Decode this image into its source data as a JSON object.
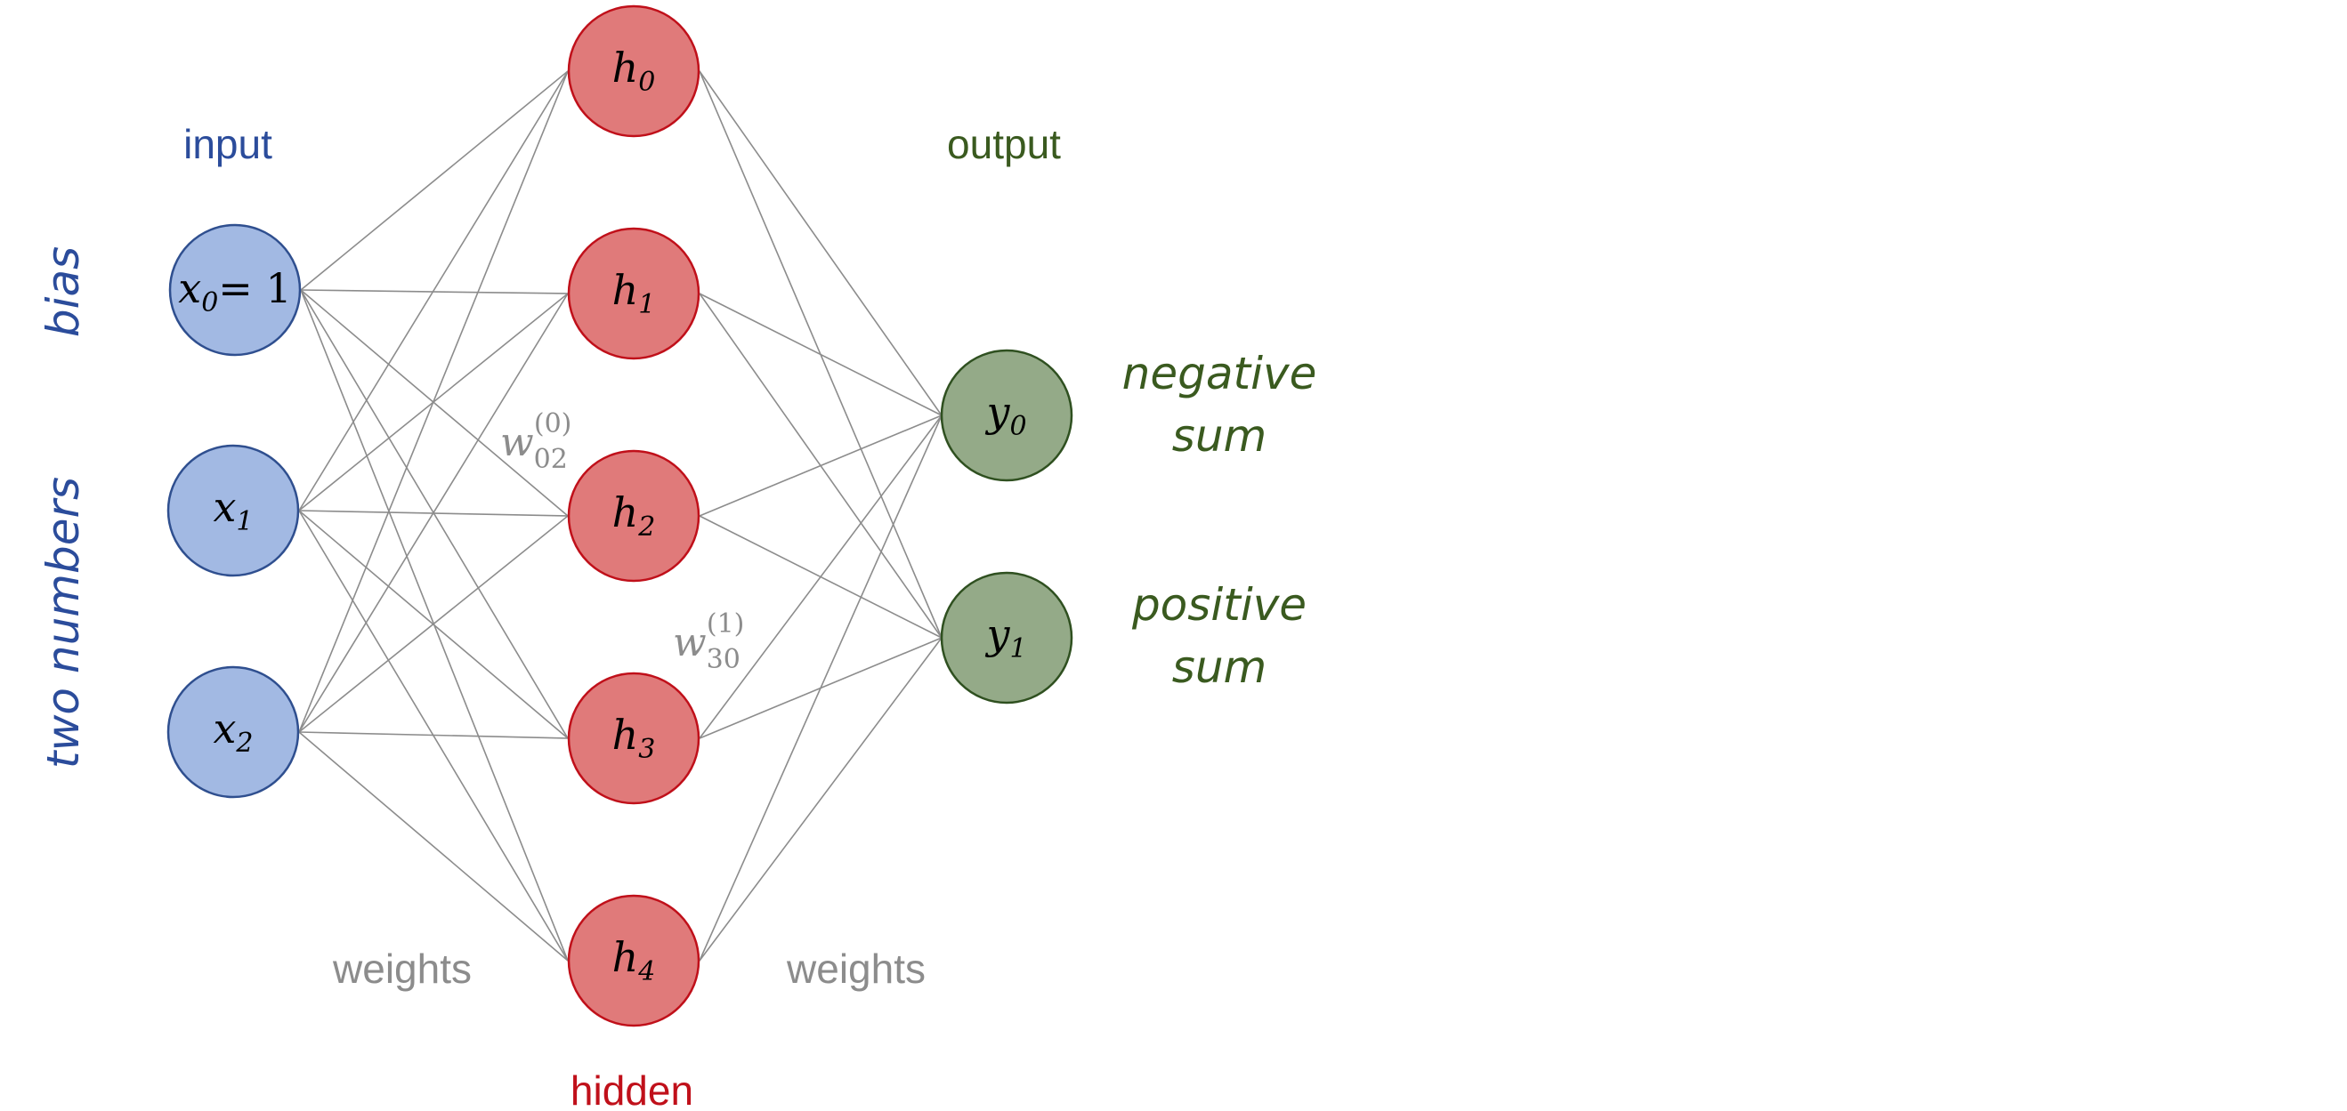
{
  "colors": {
    "input_fill": "#a2b9e3",
    "input_stroke": "#2f4f8f",
    "hidden_fill": "#e07a7a",
    "hidden_stroke": "#c0101a",
    "output_fill": "#94aa88",
    "output_stroke": "#2f5020",
    "edge": "#8c8c8c",
    "blue_text": "#2b4c9b",
    "green_text": "#3a5a1f",
    "red_text": "#c0101a",
    "gray_text": "#8c8c8c"
  },
  "labels": {
    "input": "input",
    "output": "output",
    "hidden": "hidden",
    "weights_left": "weights",
    "weights_right": "weights",
    "bias": "bias",
    "two_numbers": "two numbers",
    "negative": "negative",
    "negative_sum": "sum",
    "positive": "positive",
    "positive_sum": "sum"
  },
  "nodes": {
    "inputs": [
      {
        "var": "x",
        "sub": "0",
        "suffix": "= 1"
      },
      {
        "var": "x",
        "sub": "1",
        "suffix": ""
      },
      {
        "var": "x",
        "sub": "2",
        "suffix": ""
      }
    ],
    "hidden": [
      {
        "var": "h",
        "sub": "0"
      },
      {
        "var": "h",
        "sub": "1"
      },
      {
        "var": "h",
        "sub": "2"
      },
      {
        "var": "h",
        "sub": "3"
      },
      {
        "var": "h",
        "sub": "4"
      }
    ],
    "outputs": [
      {
        "var": "y",
        "sub": "0"
      },
      {
        "var": "y",
        "sub": "1"
      }
    ]
  },
  "weight_annotations": [
    {
      "var": "w",
      "sub": "02",
      "sup": "(0)"
    },
    {
      "var": "w",
      "sub": "30",
      "sup": "(1)"
    }
  ]
}
